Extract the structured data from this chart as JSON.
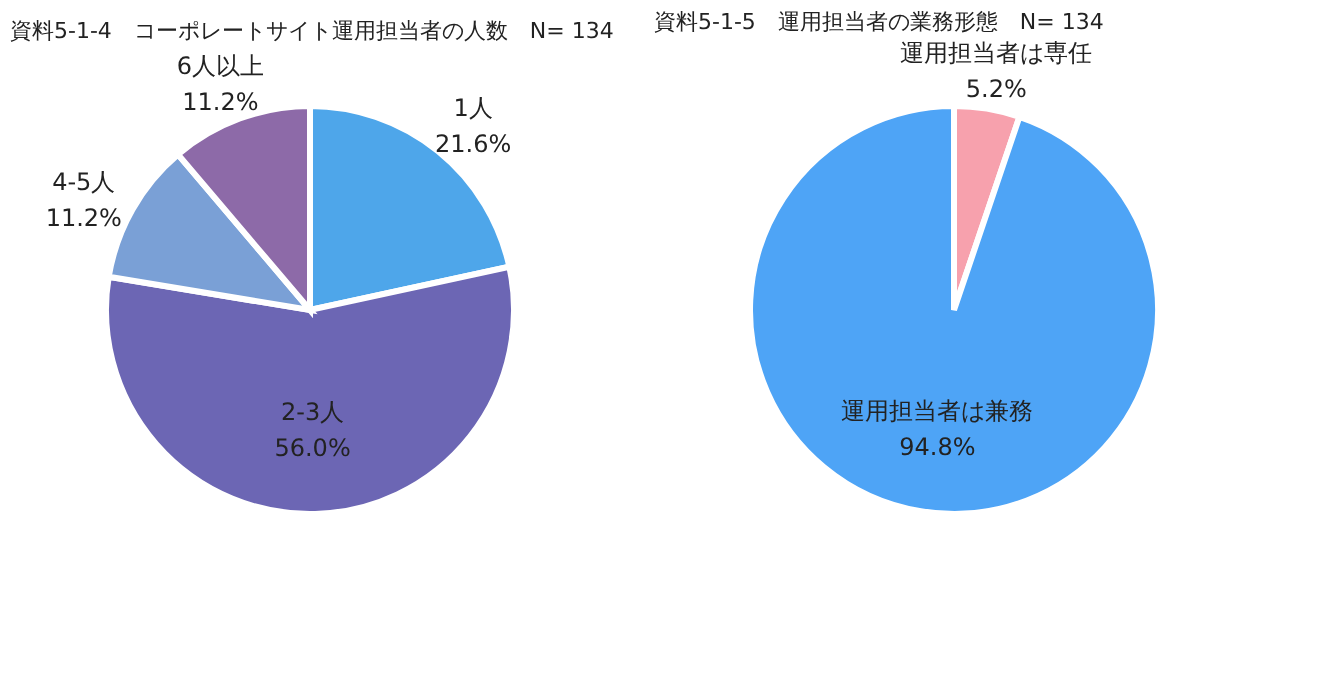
{
  "chart_data": [
    {
      "type": "pie",
      "title": "資料5-1-4　コーポレートサイト運用担当者の人数　N= 134",
      "categories": [
        "1人",
        "2-3人",
        "4-5人",
        "6人以上"
      ],
      "values": [
        21.6,
        56.0,
        11.2,
        11.2
      ],
      "value_labels": [
        "21.6%",
        "56.0%",
        "11.2%",
        "11.2%"
      ],
      "colors": [
        "#4ea6ea",
        "#6c66b4",
        "#7aa0d6",
        "#8d6aa8"
      ],
      "legend": false
    },
    {
      "type": "pie",
      "title": "資料5-1-5　運用担当者の業務形態　N= 134",
      "categories": [
        "運用担当者は専任",
        "運用担当者は兼務"
      ],
      "values": [
        5.2,
        94.8
      ],
      "value_labels": [
        "5.2%",
        "94.8%"
      ],
      "colors": [
        "#f7a1ad",
        "#4ea4f6"
      ],
      "legend": false
    }
  ]
}
